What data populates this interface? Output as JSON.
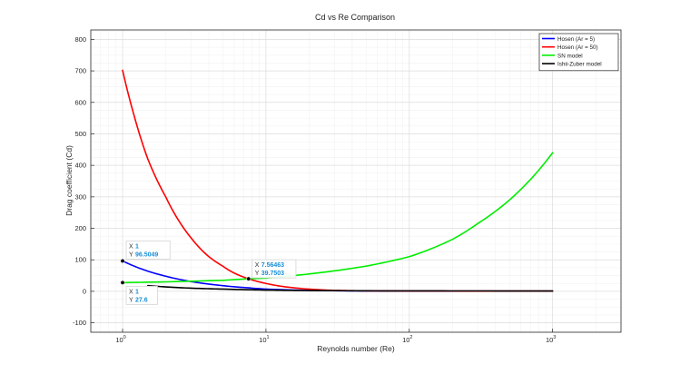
{
  "chart_data": {
    "type": "line",
    "title": "Cd vs Re Comparison",
    "xlabel": "Reynolds number (Re)",
    "ylabel": "Drag coefficient (Cd)",
    "x_scale": "log",
    "xlim": [
      0.6,
      3000
    ],
    "ylim": [
      -130,
      830
    ],
    "grid": true,
    "minor_grid": true,
    "legend_position": "top-right",
    "x_ticks": [
      {
        "value": 1,
        "base": "10",
        "exp": "0"
      },
      {
        "value": 10,
        "base": "10",
        "exp": "1"
      },
      {
        "value": 100,
        "base": "10",
        "exp": "2"
      },
      {
        "value": 1000,
        "base": "10",
        "exp": "3"
      }
    ],
    "y_ticks": [
      -100,
      0,
      100,
      200,
      300,
      400,
      500,
      600,
      700,
      800
    ],
    "series": [
      {
        "name": "Hosen (Ar = 5)",
        "color": "#0000ff",
        "x": [
          1,
          1.5,
          2,
          3,
          5,
          7.56,
          10,
          20,
          50,
          100,
          200,
          500,
          1000
        ],
        "y": [
          96.5,
          64,
          48,
          31,
          18,
          11,
          7,
          3,
          1,
          0.8,
          0.6,
          0.5,
          0.5
        ]
      },
      {
        "name": "Hosen (Ar = 50)",
        "color": "#ff0000",
        "x": [
          1,
          1.2,
          1.5,
          2,
          2.5,
          3,
          4,
          5,
          6,
          7.56,
          10,
          15,
          20,
          30,
          50,
          100,
          200,
          500,
          1000
        ],
        "y": [
          702,
          560,
          420,
          300,
          220,
          170,
          110,
          80,
          58,
          39.75,
          25,
          12,
          7,
          3,
          1.5,
          1,
          0.8,
          0.6,
          0.5
        ]
      },
      {
        "name": "SN model",
        "color": "#00ee00",
        "x": [
          1,
          2,
          5,
          7.56,
          10,
          20,
          50,
          100,
          200,
          300,
          500,
          700,
          1000
        ],
        "y": [
          27.6,
          30,
          35,
          39.75,
          42,
          55,
          80,
          110,
          165,
          215,
          290,
          355,
          440
        ]
      },
      {
        "name": "Ishii-Zuber model",
        "color": "#000000",
        "x": [
          1.5,
          2,
          3,
          5,
          10,
          20,
          50,
          100,
          200,
          500,
          1000
        ],
        "y": [
          18,
          14,
          10,
          7,
          4,
          2.5,
          1.6,
          1.3,
          1.2,
          1.1,
          1.1
        ]
      }
    ],
    "datatips": [
      {
        "x_label": "X",
        "x_value": "1",
        "y_label": "Y",
        "y_value": "96.5049",
        "x": 1,
        "y": 96.5049
      },
      {
        "x_label": "X",
        "x_value": "1",
        "y_label": "Y",
        "y_value": "27.6",
        "x": 1,
        "y": 27.6
      },
      {
        "x_label": "X",
        "x_value": "7.56463",
        "y_label": "Y",
        "y_value": "39.7503",
        "x": 7.56463,
        "y": 39.7503
      }
    ]
  }
}
